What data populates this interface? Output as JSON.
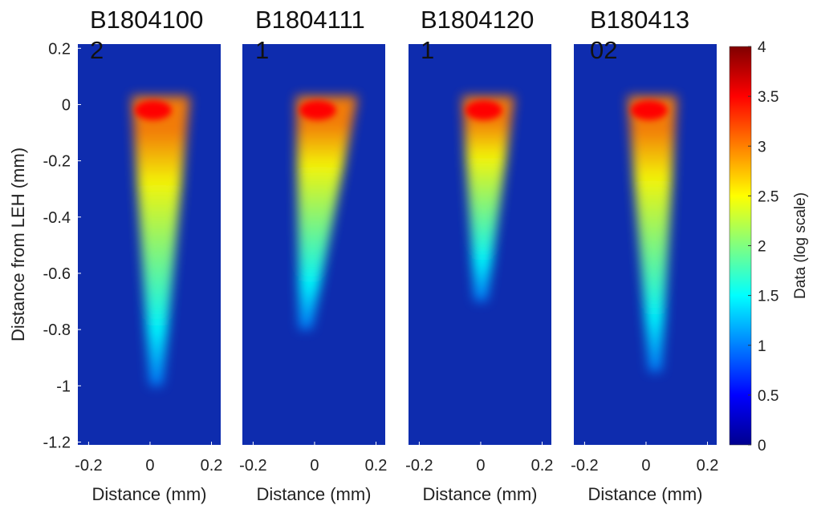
{
  "chart_data": [
    {
      "type": "heatmap",
      "title": "B18041002",
      "xlabel": "Distance (mm)",
      "ylabel": "Distance from LEH (mm)",
      "xlim": [
        -0.235,
        0.23
      ],
      "xticks": [
        -0.2,
        0,
        0.2
      ],
      "ylim": [
        -1.21,
        0.215
      ],
      "yticks": [
        -1.2,
        -1,
        -0.8,
        -0.6,
        -0.4,
        -0.2,
        0,
        0.2
      ]
    },
    {
      "type": "heatmap",
      "title": "B18041111",
      "xlabel": "Distance (mm)",
      "xlim": [
        -0.235,
        0.23
      ],
      "xticks": [
        -0.2,
        0,
        0.2
      ],
      "ylim": [
        -1.21,
        0.215
      ]
    },
    {
      "type": "heatmap",
      "title": "B18041201",
      "xlabel": "Distance (mm)",
      "xlim": [
        -0.235,
        0.23
      ],
      "xticks": [
        -0.2,
        0,
        0.2
      ],
      "ylim": [
        -1.21,
        0.215
      ]
    },
    {
      "type": "heatmap",
      "title": "B18041302",
      "xlabel": "Distance (mm)",
      "xlim": [
        -0.235,
        0.23
      ],
      "xticks": [
        -0.2,
        0,
        0.2
      ],
      "ylim": [
        -1.21,
        0.215
      ]
    }
  ],
  "colorbar": {
    "label": "Data (log scale)",
    "lim": [
      0,
      4
    ],
    "ticks": [
      0,
      0.5,
      1,
      1.5,
      2,
      2.5,
      3,
      3.5,
      4
    ],
    "colormap": [
      "#00008f",
      "#0000ff",
      "#0080ff",
      "#00ffff",
      "#80ff80",
      "#ffff00",
      "#ff8000",
      "#ff0000",
      "#800000"
    ],
    "background": "#0e2cae"
  }
}
